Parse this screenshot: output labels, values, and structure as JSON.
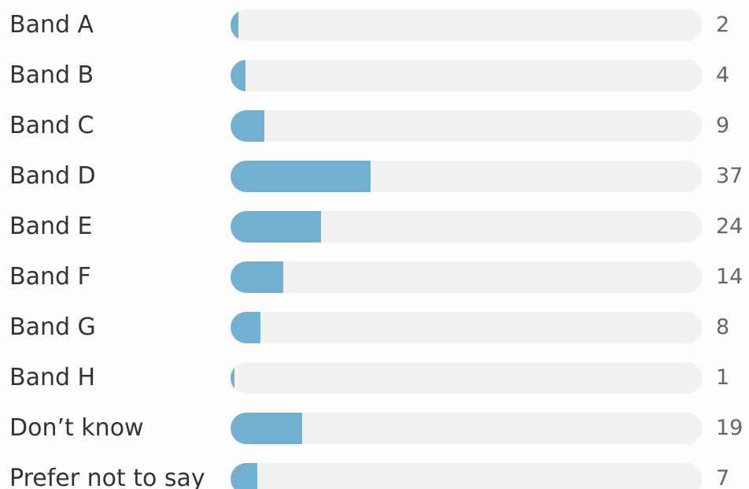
{
  "chart_data": {
    "type": "bar",
    "orientation": "horizontal",
    "categories": [
      "Band A",
      "Band B",
      "Band C",
      "Band D",
      "Band E",
      "Band F",
      "Band G",
      "Band H",
      "Don’t know",
      "Prefer not to say"
    ],
    "values": [
      2,
      4,
      9,
      37,
      24,
      14,
      8,
      1,
      19,
      7
    ],
    "xlim": [
      0,
      125
    ],
    "bar_color": "#72b0d0",
    "track_color": "#f1f1f1",
    "grid": false
  }
}
